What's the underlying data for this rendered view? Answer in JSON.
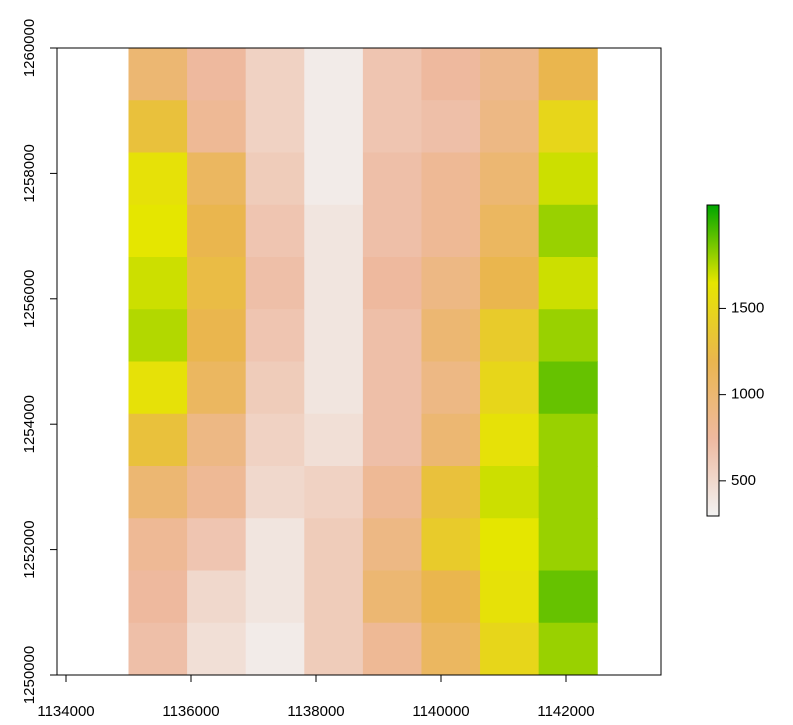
{
  "chart_data": {
    "type": "raster",
    "x_extent": [
      1135000,
      1142500
    ],
    "y_extent": [
      1250000,
      1260000
    ],
    "values": [
      [
        1000,
        750,
        550,
        350,
        650,
        750,
        850,
        1200
      ],
      [
        1300,
        800,
        550,
        350,
        650,
        700,
        900,
        1500
      ],
      [
        1600,
        1100,
        600,
        350,
        700,
        800,
        1000,
        1700
      ],
      [
        1650,
        1200,
        650,
        400,
        700,
        800,
        1100,
        1800
      ],
      [
        1700,
        1250,
        700,
        400,
        750,
        900,
        1200,
        1700
      ],
      [
        1750,
        1200,
        650,
        400,
        700,
        1000,
        1400,
        1800
      ],
      [
        1600,
        1100,
        600,
        400,
        700,
        900,
        1500,
        1900
      ],
      [
        1300,
        900,
        550,
        450,
        700,
        1000,
        1600,
        1800
      ],
      [
        1000,
        800,
        500,
        550,
        800,
        1300,
        1700,
        1800
      ],
      [
        800,
        650,
        400,
        600,
        900,
        1400,
        1650,
        1800
      ],
      [
        750,
        500,
        400,
        600,
        1000,
        1200,
        1600,
        1900
      ],
      [
        700,
        450,
        350,
        600,
        800,
        1100,
        1500,
        1800
      ]
    ],
    "colors": [
      "#f2f2f2",
      "#eeb99f",
      "#eab64e",
      "#e6e600",
      "#00a600"
    ],
    "xlim": [
      1133856,
      1143520
    ],
    "ylim": [
      1250000,
      1260000
    ],
    "xticks": [
      1134000,
      1136000,
      1138000,
      1140000,
      1142000
    ],
    "yticks": [
      1250000,
      1252000,
      1254000,
      1256000,
      1258000,
      1260000
    ],
    "zlim": [
      296,
      2100
    ],
    "zticks": [
      500,
      1000,
      1500
    ]
  }
}
